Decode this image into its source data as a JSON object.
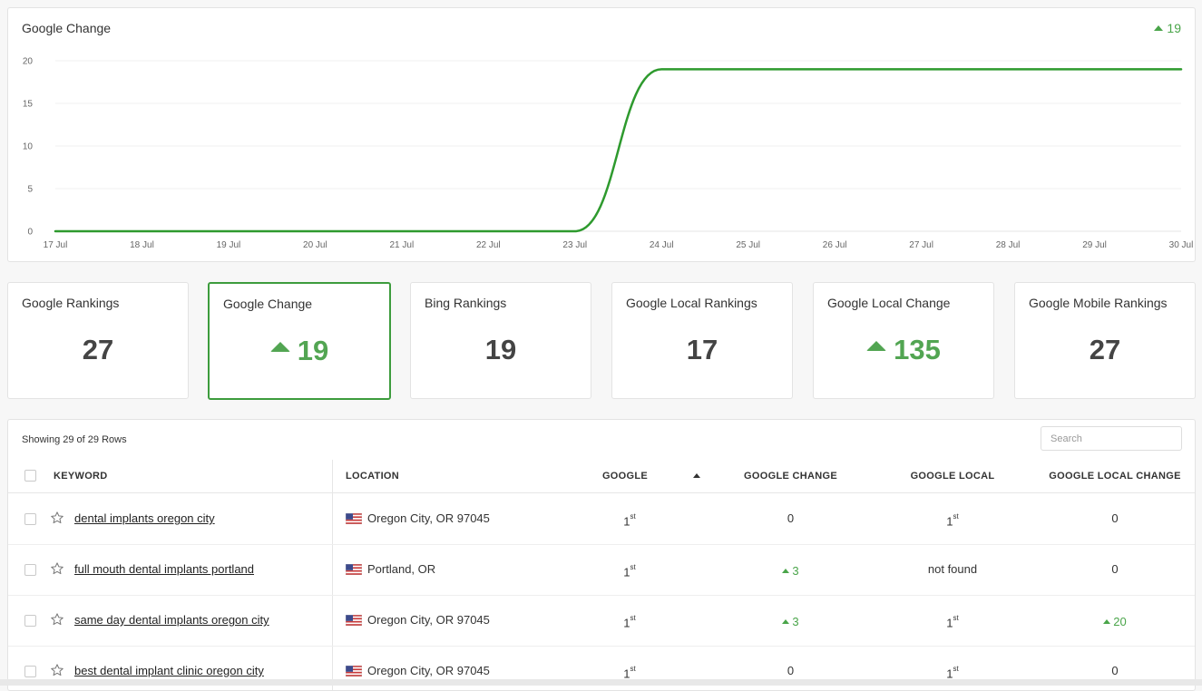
{
  "chart": {
    "title": "Google Change",
    "badge_value": "19"
  },
  "chart_data": {
    "type": "line",
    "title": "Google Change",
    "x": [
      "17 Jul",
      "18 Jul",
      "19 Jul",
      "20 Jul",
      "21 Jul",
      "22 Jul",
      "23 Jul",
      "24 Jul",
      "25 Jul",
      "26 Jul",
      "27 Jul",
      "28 Jul",
      "29 Jul",
      "30 Jul"
    ],
    "y_ticks": [
      "0",
      "5",
      "10",
      "15",
      "20"
    ],
    "ylim": [
      0,
      20
    ],
    "series": [
      {
        "values": [
          0,
          0,
          0,
          0,
          0,
          0,
          0,
          19,
          19,
          19,
          19,
          19,
          19,
          19
        ]
      }
    ],
    "grid": true,
    "legend": "none",
    "line_color": "#2e9a2e"
  },
  "cards": [
    {
      "label": "Google Rankings",
      "value": "27",
      "trend": "none"
    },
    {
      "label": "Google Change",
      "value": "19",
      "trend": "up"
    },
    {
      "label": "Bing Rankings",
      "value": "19",
      "trend": "none"
    },
    {
      "label": "Google Local Rankings",
      "value": "17",
      "trend": "none"
    },
    {
      "label": "Google Local Change",
      "value": "135",
      "trend": "up"
    },
    {
      "label": "Google Mobile Rankings",
      "value": "27",
      "trend": "none"
    }
  ],
  "table": {
    "showing": "Showing 29 of 29 Rows",
    "search_placeholder": "Search",
    "headers": {
      "keyword": "KEYWORD",
      "location": "LOCATION",
      "google": "GOOGLE",
      "google_change": "GOOGLE CHANGE",
      "google_local": "GOOGLE LOCAL",
      "google_local_change": "GOOGLE LOCAL CHANGE"
    },
    "rows": [
      {
        "keyword": "dental implants oregon city",
        "location": "Oregon City, OR 97045",
        "google": "1",
        "google_sup": "st",
        "google_change": "0",
        "google_change_up": false,
        "google_local": "1",
        "google_local_sup": "st",
        "google_local_change": "0",
        "google_local_change_up": false
      },
      {
        "keyword": "full mouth dental implants portland",
        "location": "Portland, OR",
        "google": "1",
        "google_sup": "st",
        "google_change": "3",
        "google_change_up": true,
        "google_local": "not found",
        "google_local_sup": "",
        "google_local_change": "0",
        "google_local_change_up": false
      },
      {
        "keyword": "same day dental implants oregon city",
        "location": "Oregon City, OR 97045",
        "google": "1",
        "google_sup": "st",
        "google_change": "3",
        "google_change_up": true,
        "google_local": "1",
        "google_local_sup": "st",
        "google_local_change": "20",
        "google_local_change_up": true
      },
      {
        "keyword": "best dental implant clinic oregon city",
        "location": "Oregon City, OR 97045",
        "google": "1",
        "google_sup": "st",
        "google_change": "0",
        "google_change_up": false,
        "google_local": "1",
        "google_local_sup": "st",
        "google_local_change": "0",
        "google_local_change_up": false
      }
    ]
  }
}
